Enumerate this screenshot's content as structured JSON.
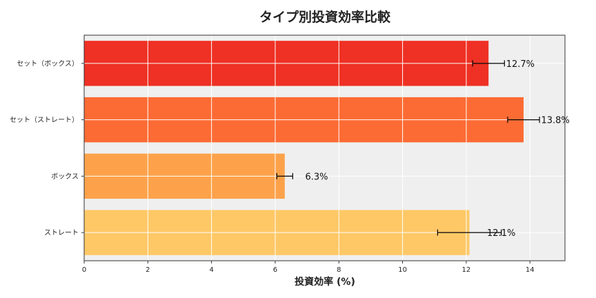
{
  "chart_data": {
    "type": "bar",
    "orientation": "horizontal",
    "title": "タイプ別投資効率比較",
    "xlabel": "投資効率 (%)",
    "ylabel": "",
    "categories": [
      "セット（ボックス）",
      "セット（ストレート）",
      "ボックス",
      "ストレート"
    ],
    "values": [
      12.7,
      13.8,
      6.3,
      12.1
    ],
    "errors": [
      0.5,
      0.5,
      0.25,
      1.0
    ],
    "data_labels": [
      "12.7%",
      "13.8%",
      "6.3%",
      "12.1%"
    ],
    "bar_colors": [
      "#ee3124",
      "#fd6b34",
      "#fda24a",
      "#fec866"
    ],
    "xlim": [
      0,
      15.1
    ],
    "xticks": [
      0,
      2,
      4,
      6,
      8,
      10,
      12,
      14
    ],
    "grid": true,
    "plot_background": "#efefef"
  }
}
